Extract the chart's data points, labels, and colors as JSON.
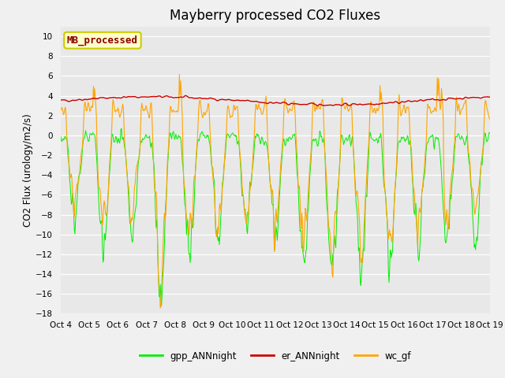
{
  "title": "Mayberry processed CO2 Fluxes",
  "ylabel": "CO2 Flux (urology/m2/s)",
  "ylim": [
    -18,
    11
  ],
  "yticks": [
    -18,
    -16,
    -14,
    -12,
    -10,
    -8,
    -6,
    -4,
    -2,
    0,
    2,
    4,
    6,
    8,
    10
  ],
  "xlabels": [
    "Oct 4",
    "Oct 5",
    "Oct 6",
    "Oct 7",
    "Oct 8",
    "Oct 9",
    "Oct 10",
    "Oct 11",
    "Oct 12",
    "Oct 13",
    "Oct 14",
    "Oct 15",
    "Oct 16",
    "Oct 17",
    "Oct 18",
    "Oct 19"
  ],
  "legend_labels": [
    "gpp_ANNnight",
    "er_ANNnight",
    "wc_gf"
  ],
  "line_colors": [
    "#00ee00",
    "#cc0000",
    "#ffa500"
  ],
  "watermark_text": "MB_processed",
  "watermark_color": "#8b0000",
  "watermark_bg": "#ffffcc",
  "watermark_edge": "#cccc00",
  "plot_bg": "#e8e8e8",
  "fig_bg": "#f0f0f0",
  "grid_color": "#ffffff",
  "title_fontsize": 12,
  "n_points": 720,
  "seed": 42
}
